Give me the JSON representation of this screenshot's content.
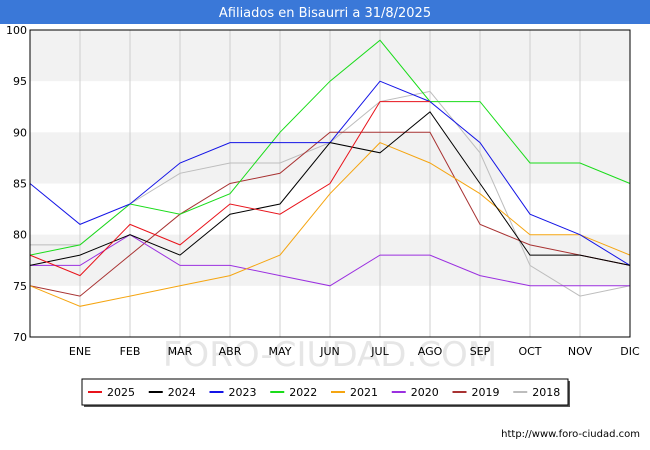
{
  "chart_data": {
    "type": "line",
    "title": "Afiliados en Bisaurri a 31/8/2025",
    "categories": [
      "",
      "ENE",
      "FEB",
      "MAR",
      "ABR",
      "MAY",
      "JUN",
      "JUL",
      "AGO",
      "SEP",
      "OCT",
      "NOV",
      "DIC"
    ],
    "ylim": [
      70,
      100
    ],
    "yticks": [
      70,
      75,
      80,
      85,
      90,
      95,
      100
    ],
    "grid": true,
    "legend_position": "bottom",
    "series": [
      {
        "name": "2025",
        "color": "#e8131b",
        "values": [
          78,
          76,
          81,
          79,
          83,
          82,
          85,
          93,
          93,
          null,
          null,
          null,
          null
        ]
      },
      {
        "name": "2024",
        "color": "#000000",
        "values": [
          77,
          78,
          80,
          78,
          82,
          83,
          89,
          88,
          92,
          85,
          78,
          78,
          77
        ]
      },
      {
        "name": "2023",
        "color": "#1414e6",
        "values": [
          85,
          81,
          83,
          87,
          89,
          89,
          89,
          95,
          93,
          89,
          82,
          80,
          77
        ]
      },
      {
        "name": "2022",
        "color": "#1adc1a",
        "values": [
          78,
          79,
          83,
          82,
          84,
          90,
          95,
          99,
          93,
          93,
          87,
          87,
          85
        ]
      },
      {
        "name": "2021",
        "color": "#f5a511",
        "values": [
          75,
          73,
          74,
          75,
          76,
          78,
          84,
          89,
          87,
          84,
          80,
          80,
          78
        ]
      },
      {
        "name": "2020",
        "color": "#9b30e0",
        "values": [
          77,
          77,
          80,
          77,
          77,
          76,
          75,
          78,
          78,
          76,
          75,
          75,
          75
        ]
      },
      {
        "name": "2019",
        "color": "#a83232",
        "values": [
          75,
          74,
          78,
          82,
          85,
          86,
          90,
          90,
          90,
          81,
          79,
          78,
          77
        ]
      },
      {
        "name": "2018",
        "color": "#bdbdbd",
        "values": [
          79,
          79,
          83,
          86,
          87,
          87,
          89,
          93,
          94,
          88,
          77,
          74,
          75
        ]
      }
    ]
  },
  "watermark": "FORO-CIUDAD.COM",
  "footer_url": "http://www.foro-ciudad.com"
}
